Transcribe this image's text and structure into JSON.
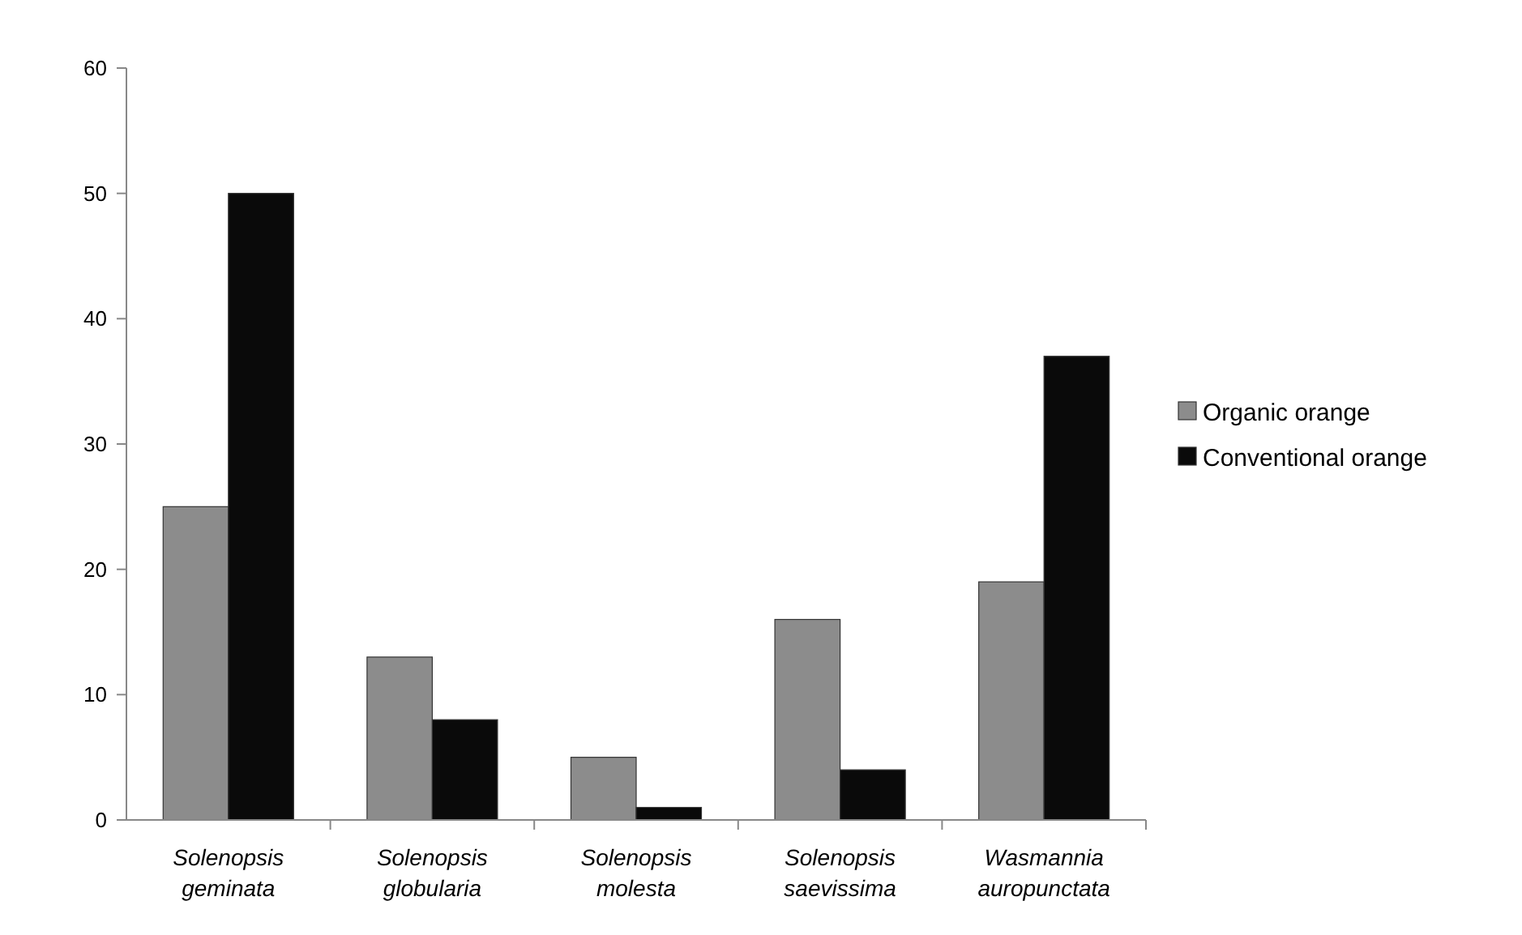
{
  "chart_data": {
    "type": "bar",
    "categories": [
      "Solenopsis geminata",
      "Solenopsis globularia",
      "Solenopsis molesta",
      "Solenopsis saevissima",
      "Wasmannia auropunctata"
    ],
    "series": [
      {
        "name": "Organic orange",
        "color": "#8c8c8c",
        "values": [
          25,
          13,
          5,
          16,
          19
        ]
      },
      {
        "name": "Conventional orange",
        "color": "#0a0a0a",
        "values": [
          50,
          8,
          1,
          4,
          37
        ]
      }
    ],
    "ylim": [
      0,
      60
    ],
    "yticks": [
      0,
      10,
      20,
      30,
      40,
      50,
      60
    ],
    "grid": false,
    "legend": "right"
  }
}
